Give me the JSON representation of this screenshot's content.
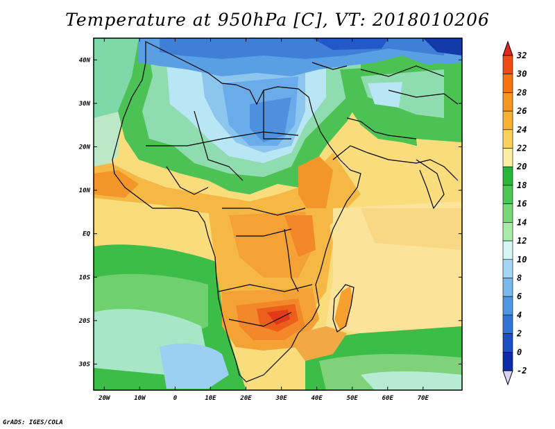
{
  "title": "Temperature at 950hPa [C], VT: 2018010206",
  "credit": "GrADS: IGES/COLA",
  "map": {
    "region": "Africa",
    "variable": "Temperature at 950hPa",
    "units": "C",
    "valid_time": "2018010206",
    "lon_range": [
      -23,
      81
    ],
    "lat_range": [
      -36,
      45
    ],
    "lon_ticks": [
      {
        "value": -20,
        "label": "20W"
      },
      {
        "value": -10,
        "label": "10W"
      },
      {
        "value": 0,
        "label": "0"
      },
      {
        "value": 10,
        "label": "10E"
      },
      {
        "value": 20,
        "label": "20E"
      },
      {
        "value": 30,
        "label": "30E"
      },
      {
        "value": 40,
        "label": "40E"
      },
      {
        "value": 50,
        "label": "50E"
      },
      {
        "value": 60,
        "label": "60E"
      },
      {
        "value": 70,
        "label": "70E"
      }
    ],
    "lat_ticks": [
      {
        "value": 40,
        "label": "40N"
      },
      {
        "value": 30,
        "label": "30N"
      },
      {
        "value": 20,
        "label": "20N"
      },
      {
        "value": 10,
        "label": "10N"
      },
      {
        "value": 0,
        "label": "EQ"
      },
      {
        "value": -10,
        "label": "10S"
      },
      {
        "value": -20,
        "label": "20S"
      },
      {
        "value": -30,
        "label": "30S"
      }
    ]
  },
  "colorbar": {
    "labels": [
      "32",
      "30",
      "28",
      "26",
      "24",
      "22",
      "20",
      "18",
      "16",
      "14",
      "12",
      "10",
      "8",
      "6",
      "4",
      "2",
      "0",
      "-2"
    ],
    "colors": [
      "#e0261e",
      "#ee4a14",
      "#f5740e",
      "#f7961e",
      "#f8b030",
      "#fbd15c",
      "#fbeea0",
      "#27b53a",
      "#4cc754",
      "#78d878",
      "#a8eaa8",
      "#d6f6f6",
      "#a4d6f4",
      "#78b8ec",
      "#4e98e2",
      "#3074d6",
      "#1c4ec4",
      "#0d2ba8",
      "#081670"
    ]
  }
}
